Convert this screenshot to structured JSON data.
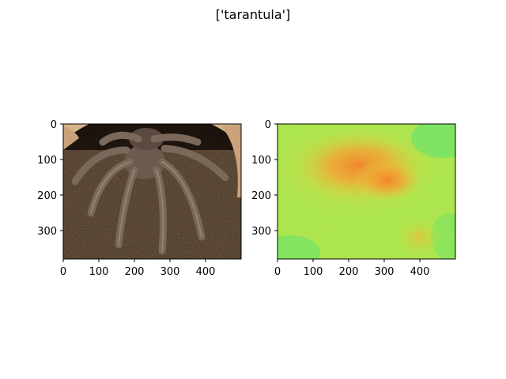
{
  "figure": {
    "suptitle": "['tarantula']"
  },
  "chart_data": [
    {
      "type": "image",
      "content": "photo of a tarantula emerging from a burrow",
      "xlim": [
        0,
        500
      ],
      "ylim": [
        380,
        0
      ],
      "xticks": [
        "0",
        "100",
        "200",
        "300",
        "400"
      ],
      "yticks": [
        "0",
        "100",
        "200",
        "300"
      ],
      "colors": {
        "background": "#d7b48a",
        "soil": "#3a2a1e",
        "spider": "#6b5a4e"
      }
    },
    {
      "type": "heatmap",
      "content": "saliency / attention heatmap over the same image",
      "xlim": [
        0,
        500
      ],
      "ylim": [
        380,
        0
      ],
      "xticks": [
        "0",
        "100",
        "200",
        "300",
        "400"
      ],
      "yticks": [
        "0",
        "100",
        "200",
        "300"
      ],
      "colors": {
        "low": "#55ee66",
        "mid": "#aef040",
        "high": "#f07a20"
      }
    }
  ]
}
